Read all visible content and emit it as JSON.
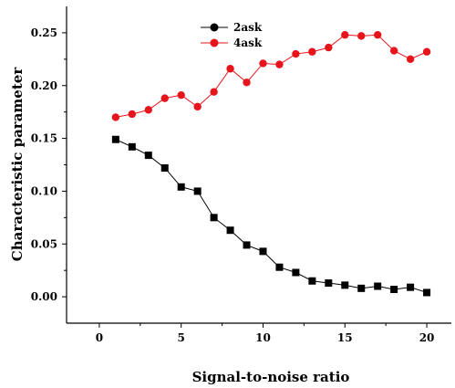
{
  "chart_data": {
    "type": "line",
    "xlabel": "Signal-to-noise ratio",
    "ylabel": "Characteristic parameter",
    "xlim": [
      -2,
      21.5
    ],
    "ylim": [
      -0.025,
      0.275
    ],
    "xticks": [
      0,
      5,
      10,
      15,
      20
    ],
    "yticks": [
      0.0,
      0.05,
      0.1,
      0.15,
      0.2,
      0.25
    ],
    "xtick_labels": [
      "0",
      "5",
      "10",
      "15",
      "20"
    ],
    "ytick_labels": [
      "0.00",
      "0.05",
      "0.10",
      "0.15",
      "0.20",
      "0.25"
    ],
    "legend_position": "top-center",
    "grid": false,
    "x": [
      1,
      2,
      3,
      4,
      5,
      6,
      7,
      8,
      9,
      10,
      11,
      12,
      13,
      14,
      15,
      16,
      17,
      18,
      19,
      20
    ],
    "series": [
      {
        "name": "2ask",
        "color": "#000000",
        "marker": "square",
        "values": [
          0.149,
          0.142,
          0.134,
          0.122,
          0.104,
          0.1,
          0.075,
          0.063,
          0.049,
          0.043,
          0.028,
          0.023,
          0.015,
          0.013,
          0.011,
          0.008,
          0.01,
          0.007,
          0.009,
          0.004
        ]
      },
      {
        "name": "4ask",
        "color": "#e8141c",
        "marker": "circle",
        "values": [
          0.17,
          0.173,
          0.177,
          0.188,
          0.191,
          0.18,
          0.194,
          0.216,
          0.203,
          0.221,
          0.22,
          0.23,
          0.232,
          0.236,
          0.248,
          0.247,
          0.248,
          0.233,
          0.225,
          0.232
        ]
      }
    ]
  }
}
